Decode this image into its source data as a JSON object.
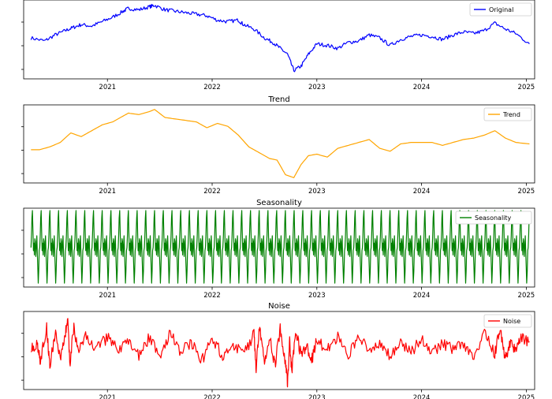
{
  "chart_data": [
    {
      "type": "line",
      "title": "Original",
      "legend": "Original",
      "legend_position": "top-right",
      "color": "#0000ff",
      "x_ticks": [
        "2021",
        "2022",
        "2023",
        "2024",
        "2025"
      ],
      "x_tick_dates": [
        2021.0,
        2022.0,
        2023.0,
        2024.0,
        2025.0
      ],
      "x_range": [
        2020.2,
        2025.08
      ],
      "y_range": [
        0,
        1
      ],
      "x": [
        2020.27,
        2020.4,
        2020.5,
        2020.6,
        2020.67,
        2020.75,
        2020.85,
        2020.95,
        2021.05,
        2021.15,
        2021.2,
        2021.3,
        2021.4,
        2021.45,
        2021.55,
        2021.65,
        2021.75,
        2021.85,
        2021.95,
        2022.05,
        2022.15,
        2022.25,
        2022.3,
        2022.4,
        2022.5,
        2022.58,
        2022.65,
        2022.72,
        2022.78,
        2022.85,
        2022.92,
        2023.0,
        2023.1,
        2023.2,
        2023.3,
        2023.4,
        2023.5,
        2023.6,
        2023.7,
        2023.8,
        2023.9,
        2024.0,
        2024.1,
        2024.2,
        2024.3,
        2024.4,
        2024.5,
        2024.6,
        2024.7,
        2024.8,
        2024.9,
        2025.03
      ],
      "y": [
        0.52,
        0.48,
        0.56,
        0.62,
        0.66,
        0.7,
        0.68,
        0.74,
        0.8,
        0.88,
        0.92,
        0.9,
        0.94,
        0.96,
        0.9,
        0.88,
        0.86,
        0.84,
        0.82,
        0.76,
        0.74,
        0.76,
        0.7,
        0.64,
        0.52,
        0.46,
        0.38,
        0.3,
        0.08,
        0.14,
        0.3,
        0.44,
        0.42,
        0.38,
        0.46,
        0.48,
        0.56,
        0.52,
        0.42,
        0.5,
        0.54,
        0.56,
        0.54,
        0.5,
        0.56,
        0.6,
        0.58,
        0.62,
        0.72,
        0.64,
        0.58,
        0.44
      ]
    },
    {
      "type": "line",
      "title": "Trend",
      "legend": "Trend",
      "legend_position": "top-right",
      "color": "#ffa500",
      "x_ticks": [
        "2021",
        "2022",
        "2023",
        "2024",
        "2025"
      ],
      "x_tick_dates": [
        2021.0,
        2022.0,
        2023.0,
        2024.0,
        2025.0
      ],
      "x_range": [
        2020.2,
        2025.08
      ],
      "y_range": [
        0,
        1
      ],
      "x": [
        2020.27,
        2020.35,
        2020.45,
        2020.55,
        2020.65,
        2020.75,
        2020.85,
        2020.95,
        2021.05,
        2021.15,
        2021.2,
        2021.3,
        2021.4,
        2021.45,
        2021.55,
        2021.65,
        2021.75,
        2021.85,
        2021.95,
        2022.05,
        2022.15,
        2022.25,
        2022.35,
        2022.45,
        2022.55,
        2022.62,
        2022.7,
        2022.78,
        2022.85,
        2022.92,
        2023.0,
        2023.1,
        2023.2,
        2023.3,
        2023.4,
        2023.5,
        2023.6,
        2023.7,
        2023.8,
        2023.9,
        2024.0,
        2024.1,
        2024.2,
        2024.3,
        2024.4,
        2024.5,
        2024.6,
        2024.7,
        2024.8,
        2024.9,
        2025.03
      ],
      "y": [
        0.42,
        0.42,
        0.46,
        0.52,
        0.65,
        0.6,
        0.68,
        0.76,
        0.8,
        0.88,
        0.92,
        0.9,
        0.94,
        0.97,
        0.86,
        0.84,
        0.82,
        0.8,
        0.72,
        0.78,
        0.74,
        0.62,
        0.46,
        0.38,
        0.3,
        0.28,
        0.08,
        0.04,
        0.22,
        0.34,
        0.36,
        0.32,
        0.44,
        0.48,
        0.52,
        0.56,
        0.44,
        0.4,
        0.5,
        0.52,
        0.52,
        0.52,
        0.48,
        0.52,
        0.56,
        0.58,
        0.62,
        0.68,
        0.58,
        0.52,
        0.5
      ]
    },
    {
      "type": "line",
      "title": "Seasonality",
      "legend": "Seasonality",
      "legend_position": "top-right",
      "color": "#008000",
      "x_ticks": [
        "2021",
        "2022",
        "2023",
        "2024",
        "2025"
      ],
      "x_tick_dates": [
        2021.0,
        2022.0,
        2023.0,
        2024.0,
        2025.0
      ],
      "x_range": [
        2020.2,
        2025.08
      ],
      "y_range": [
        0,
        1
      ],
      "period_years": 0.0833,
      "start": 2020.27,
      "end": 2025.03,
      "cycle_shape": [
        0.5,
        0.66,
        0.9,
        1.0,
        0.72,
        0.46,
        0.56,
        0.4,
        0.62,
        0.58,
        0.38,
        0.52,
        0.66,
        0.44,
        0.24,
        0.02,
        0.18,
        0.46,
        0.5
      ]
    },
    {
      "type": "line",
      "title": "Noise",
      "legend": "Noise",
      "legend_position": "top-right",
      "color": "#ff0000",
      "x_ticks": [
        "2021",
        "2022",
        "2023",
        "2024",
        "2025"
      ],
      "x_tick_dates": [
        2021.0,
        2022.0,
        2023.0,
        2024.0,
        2025.0
      ],
      "x_range": [
        2020.2,
        2025.08
      ],
      "y_range": [
        0,
        1
      ],
      "x": [
        2020.27,
        2020.33,
        2020.36,
        2020.42,
        2020.45,
        2020.5,
        2020.55,
        2020.6,
        2020.62,
        2020.64,
        2020.68,
        2020.72,
        2020.8,
        2020.9,
        2021.0,
        2021.1,
        2021.2,
        2021.3,
        2021.4,
        2021.5,
        2021.6,
        2021.7,
        2021.8,
        2021.9,
        2022.0,
        2022.1,
        2022.2,
        2022.3,
        2022.4,
        2022.42,
        2022.45,
        2022.5,
        2022.55,
        2022.6,
        2022.65,
        2022.7,
        2022.72,
        2022.74,
        2022.76,
        2022.8,
        2022.85,
        2022.9,
        2022.95,
        2023.0,
        2023.1,
        2023.2,
        2023.3,
        2023.4,
        2023.5,
        2023.6,
        2023.7,
        2023.8,
        2023.9,
        2024.0,
        2024.1,
        2024.2,
        2024.3,
        2024.4,
        2024.5,
        2024.6,
        2024.7,
        2024.75,
        2024.8,
        2024.85,
        2024.9,
        2024.95,
        2025.03
      ],
      "y": [
        0.56,
        0.56,
        0.36,
        0.82,
        0.28,
        0.74,
        0.38,
        0.76,
        0.96,
        0.3,
        0.84,
        0.46,
        0.7,
        0.52,
        0.68,
        0.5,
        0.6,
        0.44,
        0.68,
        0.4,
        0.74,
        0.48,
        0.6,
        0.36,
        0.66,
        0.44,
        0.58,
        0.44,
        0.72,
        0.26,
        0.84,
        0.38,
        0.66,
        0.3,
        0.8,
        0.32,
        0.06,
        0.62,
        0.22,
        0.78,
        0.42,
        0.56,
        0.36,
        0.64,
        0.5,
        0.68,
        0.4,
        0.72,
        0.48,
        0.56,
        0.44,
        0.62,
        0.48,
        0.66,
        0.46,
        0.6,
        0.52,
        0.58,
        0.42,
        0.72,
        0.46,
        0.82,
        0.38,
        0.62,
        0.48,
        0.68,
        0.62
      ]
    }
  ]
}
